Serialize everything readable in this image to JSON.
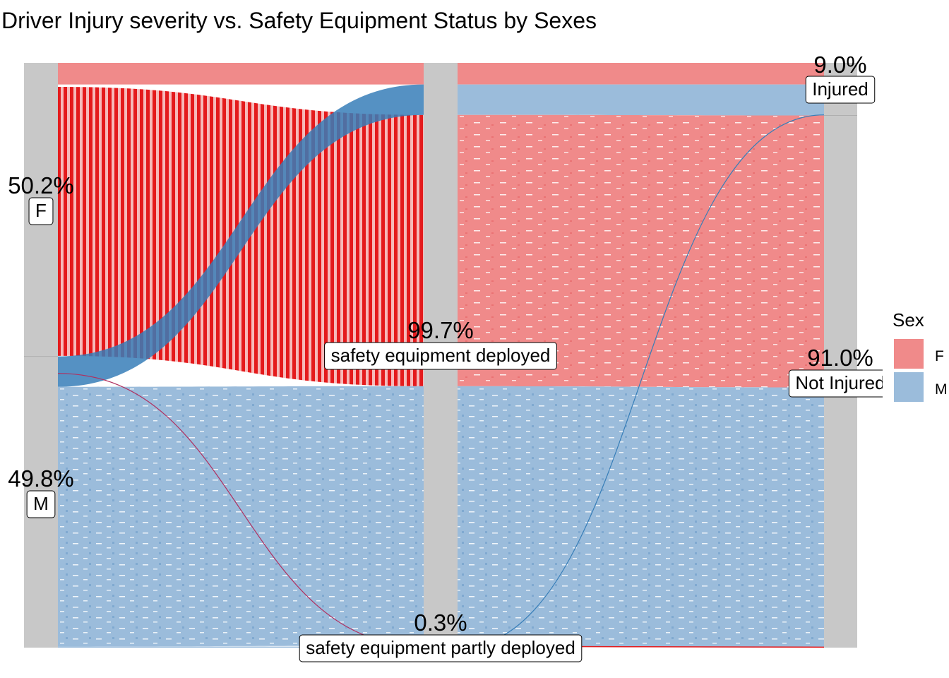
{
  "chart_data": {
    "type": "alluvial",
    "title": "Driver Injury severity vs. Safety Equipment Status by Sexes",
    "axes": [
      "Sex",
      "Safety Equipment Status",
      "Injury Severity"
    ],
    "strata": {
      "sex": [
        {
          "label": "F",
          "percent": "50.2%",
          "share": 0.502
        },
        {
          "label": "M",
          "percent": "49.8%",
          "share": 0.498
        }
      ],
      "equipment": [
        {
          "label": "safety equipment deployed",
          "percent": "99.7%",
          "share": 0.997
        },
        {
          "label": "safety equipment partly deployed",
          "percent": "0.3%",
          "share": 0.003
        }
      ],
      "injury": [
        {
          "label": "Injured",
          "percent": "9.0%",
          "share": 0.09
        },
        {
          "label": "Not Injured",
          "percent": "91.0%",
          "share": 0.91
        }
      ]
    },
    "flows": [
      {
        "sex": "F",
        "equipment": "safety equipment deployed",
        "injury": "Injured",
        "share": 0.037
      },
      {
        "sex": "F",
        "equipment": "safety equipment deployed",
        "injury": "Not Injured",
        "share": 0.464
      },
      {
        "sex": "F",
        "equipment": "safety equipment partly deployed",
        "injury": "Not Injured",
        "share": 0.001
      },
      {
        "sex": "M",
        "equipment": "safety equipment deployed",
        "injury": "Injured",
        "share": 0.052
      },
      {
        "sex": "M",
        "equipment": "safety equipment deployed",
        "injury": "Not Injured",
        "share": 0.444
      },
      {
        "sex": "M",
        "equipment": "safety equipment partly deployed",
        "injury": "Injured",
        "share": 0.001
      },
      {
        "sex": "M",
        "equipment": "safety equipment partly deployed",
        "injury": "Not Injured",
        "share": 0.001
      }
    ],
    "legend": {
      "title": "Sex",
      "placement": "right",
      "items": [
        {
          "label": "F",
          "color": "#F08A8A"
        },
        {
          "label": "M",
          "color": "#9BBCDB"
        }
      ]
    },
    "colors": {
      "F_fill": "#F08A8A",
      "M_fill": "#9BBCDB",
      "F_dark": "#E41A1C",
      "M_dark": "#377EB8",
      "stratum": "#C8C8C8"
    }
  }
}
